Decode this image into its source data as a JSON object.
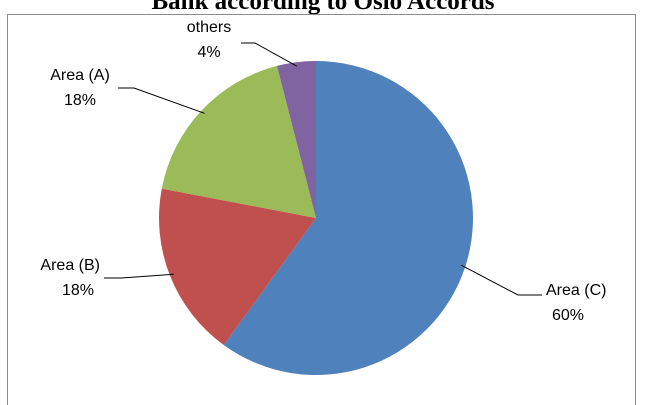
{
  "chart_data": {
    "type": "pie",
    "title": "Bank according to Oslo Accords",
    "slices": [
      {
        "name": "Area (C)",
        "value": 60,
        "value_label": "60%",
        "color": "#4F81BD"
      },
      {
        "name": "Area (B)",
        "value": 18,
        "value_label": "18%",
        "color": "#C0504D"
      },
      {
        "name": "Area (A)",
        "value": 18,
        "value_label": "18%",
        "color": "#9BBB59"
      },
      {
        "name": "others",
        "value": 4,
        "value_label": "4%",
        "color": "#8064A2"
      }
    ],
    "legend": "none"
  }
}
